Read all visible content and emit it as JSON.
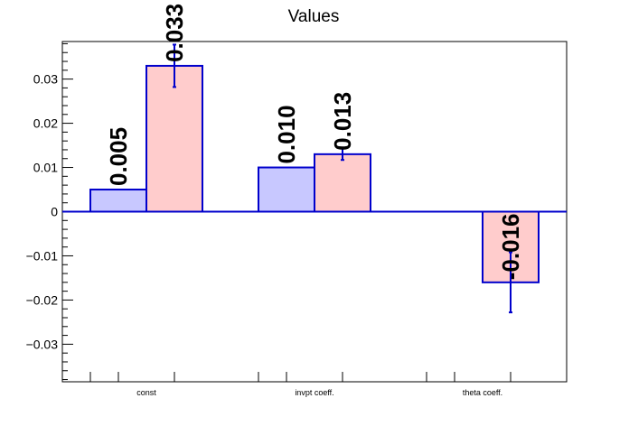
{
  "chart_data": {
    "type": "bar",
    "title": "Values",
    "categories": [
      "const",
      "invpt coeff.",
      "theta coeff."
    ],
    "ylim": [
      -0.0385,
      0.0385
    ],
    "yticks": [
      -0.03,
      -0.02,
      -0.01,
      0,
      0.01,
      0.02,
      0.03
    ],
    "ytick_labels": [
      "−0.03",
      "−0.02",
      "−0.01",
      "0",
      "0.01",
      "0.02",
      "0.03"
    ],
    "grid": false,
    "legend": "none",
    "series": [
      {
        "fill": "#c8c8ff",
        "values": [
          0.005,
          0.01,
          null
        ],
        "errors": [
          null,
          null,
          null
        ],
        "labels": [
          "0.005",
          "0.010",
          ""
        ]
      },
      {
        "fill": "#ffcccc",
        "values": [
          0.033,
          0.013,
          -0.016
        ],
        "errors": [
          0.0048,
          0.0013,
          0.0068
        ],
        "labels": [
          "0.033",
          "0.013",
          "-0.016"
        ]
      }
    ],
    "edge_color": "#0000cc"
  }
}
